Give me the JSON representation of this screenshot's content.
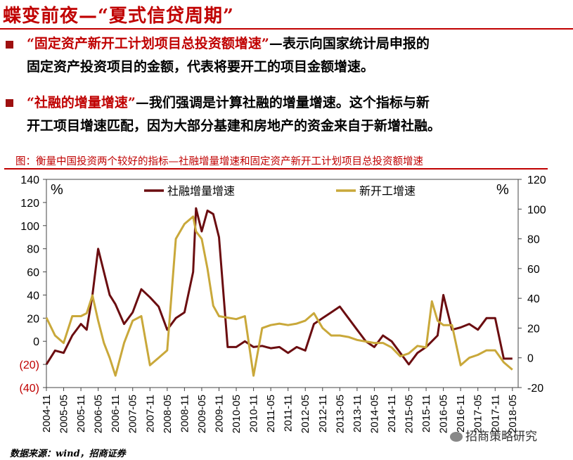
{
  "slide": {
    "title": "蝶变前夜—“夏式信贷周期”",
    "bullets": [
      {
        "highlight": "“固定资产新开工计划项目总投资额增速”",
        "line1_rest": "—表示向国家统计局申报的",
        "line2": "固定资产投资项目的金额，代表将要开工的项目金额增速。"
      },
      {
        "highlight": "“社融的增量增速”",
        "line1_rest": "—我们强调是计算社融的增量增速。这个指标与新",
        "line2": "开工项目增速匹配，因为大部分基建和房地产的资金来自于新增社融。"
      }
    ],
    "figure_caption": "图：衡量中国投资两个较好的指标—社融增量增速和固定资产新开工计划项目总投资额增速",
    "source": "数据来源：wind，招商证券",
    "watermark": "招商策略研究"
  },
  "colors": {
    "title_red": "#c00000",
    "series_social_financing": "#6b0d10",
    "series_new_start": "#c9a83a"
  },
  "chart_data": {
    "type": "line",
    "left_axis": {
      "unit_label": "%",
      "range": [
        -40,
        140
      ],
      "ticks": [
        140,
        120,
        100,
        80,
        60,
        40,
        20,
        0,
        -20,
        -40
      ],
      "tick_labels": [
        "140",
        "120",
        "100",
        "80",
        "60",
        "40",
        "20",
        "0",
        "(20)",
        "(40)"
      ]
    },
    "right_axis": {
      "unit_label": "%",
      "range": [
        -20,
        120
      ],
      "ticks": [
        120,
        100,
        80,
        60,
        40,
        20,
        0,
        -20
      ],
      "tick_labels": [
        "120",
        "100",
        "80",
        "60",
        "40",
        "20",
        "0",
        "-20"
      ]
    },
    "x_tick_labels": [
      "2004-11",
      "2005-05",
      "2005-11",
      "2006-05",
      "2006-11",
      "2007-05",
      "2007-11",
      "2008-05",
      "2008-11",
      "2009-05",
      "2009-11",
      "2010-05",
      "2010-11",
      "2011-05",
      "2011-11",
      "2012-05",
      "2012-11",
      "2013-05",
      "2013-11",
      "2014-05",
      "2014-11",
      "2015-05",
      "2015-11",
      "2016-05",
      "2016-11",
      "2017-05",
      "2017-11",
      "2018-05"
    ],
    "legend_position": "top",
    "series": [
      {
        "name": "社融增量增速",
        "axis": "left",
        "x": [
          "2004-11",
          "2005-02",
          "2005-05",
          "2005-08",
          "2005-11",
          "2006-01",
          "2006-03",
          "2006-05",
          "2006-07",
          "2006-09",
          "2006-11",
          "2007-02",
          "2007-05",
          "2007-08",
          "2007-11",
          "2008-02",
          "2008-05",
          "2008-08",
          "2008-11",
          "2009-02",
          "2009-03",
          "2009-05",
          "2009-07",
          "2009-09",
          "2009-11",
          "2010-02",
          "2010-05",
          "2010-08",
          "2010-11",
          "2011-02",
          "2011-05",
          "2011-08",
          "2011-11",
          "2012-02",
          "2012-05",
          "2012-08",
          "2012-11",
          "2013-02",
          "2013-05",
          "2013-08",
          "2013-11",
          "2014-02",
          "2014-05",
          "2014-08",
          "2014-11",
          "2015-02",
          "2015-05",
          "2015-08",
          "2015-11",
          "2016-01",
          "2016-03",
          "2016-05",
          "2016-08",
          "2016-11",
          "2017-02",
          "2017-05",
          "2017-08",
          "2017-11",
          "2018-02",
          "2018-05"
        ],
        "values": [
          -20,
          -8,
          -10,
          5,
          15,
          10,
          40,
          80,
          60,
          40,
          32,
          15,
          25,
          45,
          38,
          30,
          10,
          20,
          25,
          60,
          115,
          95,
          113,
          110,
          90,
          -5,
          -5,
          0,
          -5,
          -4,
          -6,
          -5,
          -10,
          -5,
          -8,
          15,
          20,
          25,
          30,
          20,
          10,
          0,
          -5,
          5,
          0,
          -10,
          -20,
          -10,
          -5,
          0,
          5,
          40,
          10,
          12,
          15,
          10,
          20,
          20,
          -15,
          -15
        ]
      },
      {
        "name": "新开工增速",
        "axis": "right",
        "x": [
          "2004-11",
          "2005-02",
          "2005-05",
          "2005-08",
          "2005-11",
          "2006-01",
          "2006-03",
          "2006-05",
          "2006-07",
          "2006-09",
          "2006-11",
          "2007-02",
          "2007-05",
          "2007-08",
          "2007-11",
          "2008-02",
          "2008-05",
          "2008-08",
          "2008-11",
          "2009-02",
          "2009-03",
          "2009-05",
          "2009-07",
          "2009-09",
          "2009-11",
          "2010-02",
          "2010-05",
          "2010-08",
          "2010-11",
          "2011-02",
          "2011-05",
          "2011-08",
          "2011-11",
          "2012-02",
          "2012-05",
          "2012-08",
          "2012-11",
          "2013-02",
          "2013-05",
          "2013-08",
          "2013-11",
          "2014-02",
          "2014-05",
          "2014-08",
          "2014-11",
          "2015-02",
          "2015-05",
          "2015-08",
          "2015-11",
          "2016-01",
          "2016-03",
          "2016-05",
          "2016-08",
          "2016-11",
          "2017-02",
          "2017-05",
          "2017-08",
          "2017-11",
          "2018-02",
          "2018-05"
        ],
        "values": [
          27,
          15,
          10,
          28,
          28,
          30,
          42,
          25,
          10,
          0,
          -12,
          10,
          25,
          28,
          -5,
          0,
          5,
          80,
          90,
          95,
          85,
          80,
          60,
          35,
          28,
          27,
          26,
          28,
          -12,
          20,
          22,
          23,
          22,
          23,
          25,
          30,
          20,
          15,
          15,
          14,
          12,
          11,
          10,
          10,
          7,
          1,
          3,
          8,
          7,
          38,
          25,
          22,
          22,
          -5,
          0,
          2,
          5,
          5,
          -3,
          -8
        ]
      }
    ]
  }
}
